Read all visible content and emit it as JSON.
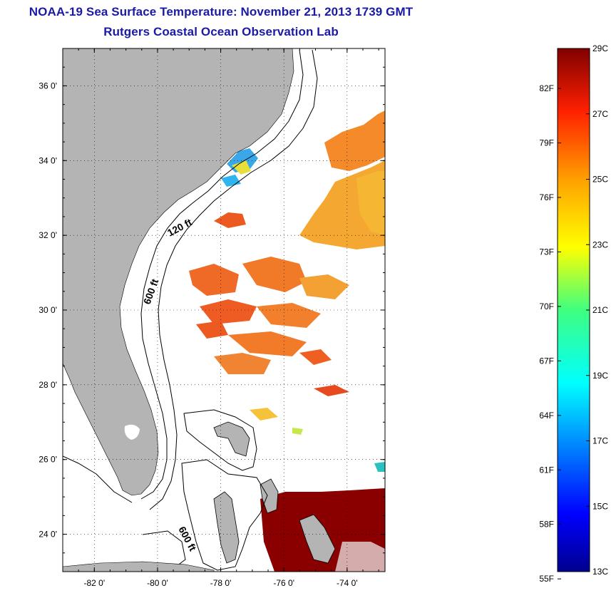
{
  "header": {
    "title": "NOAA-19 Sea Surface Temperature:  November 21, 2013 1739 GMT",
    "subtitle": "Rutgers Coastal Ocean Observation Lab"
  },
  "map": {
    "lon_range": [
      -83.0,
      -72.8
    ],
    "lat_range": [
      23.0,
      37.0
    ],
    "lat_ticks": [
      {
        "value": 36,
        "label": "36 0'"
      },
      {
        "value": 34,
        "label": "34 0'"
      },
      {
        "value": 32,
        "label": "32 0'"
      },
      {
        "value": 30,
        "label": "30 0'"
      },
      {
        "value": 28,
        "label": "28 0'"
      },
      {
        "value": 26,
        "label": "26 0'"
      },
      {
        "value": 24,
        "label": "24 0'"
      }
    ],
    "lon_ticks": [
      {
        "value": -82,
        "label": "-82 0'"
      },
      {
        "value": -80,
        "label": "-80 0'"
      },
      {
        "value": -78,
        "label": "-78 0'"
      },
      {
        "value": -76,
        "label": "-76 0'"
      },
      {
        "value": -74,
        "label": "-74 0'"
      }
    ],
    "grid": "dotted",
    "contour_labels": {
      "shelf_120": "120 ft",
      "shelf_600_north": "600 ft",
      "shelf_600_south": "600 ft"
    },
    "colors": {
      "land": "#b4b4b4",
      "contour": "#000000",
      "warm_band": "#f08a1e",
      "hot": "#8a0000",
      "nearshore_cool": "#2aa7e8"
    }
  },
  "colorbar": {
    "range_c": [
      13,
      29
    ],
    "celsius_labels": [
      "29C",
      "27C",
      "25C",
      "23C",
      "21C",
      "19C",
      "17C",
      "15C",
      "13C"
    ],
    "fahrenheit_labels": [
      "82F",
      "79F",
      "76F",
      "73F",
      "70F",
      "67F",
      "64F",
      "61F",
      "58F",
      "55F"
    ]
  }
}
